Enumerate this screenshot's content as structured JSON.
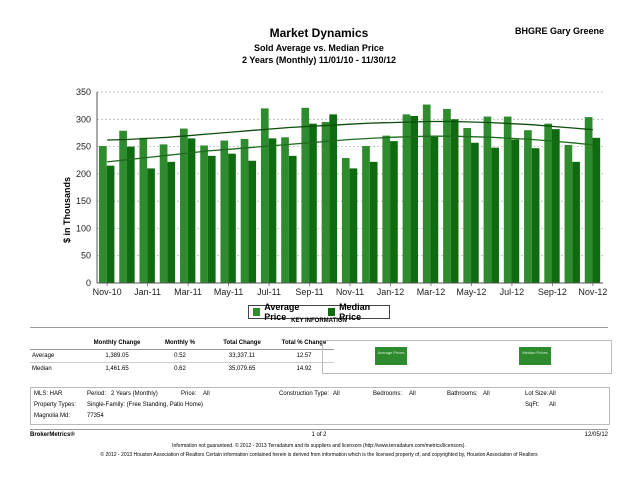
{
  "header": {
    "title": "Market Dynamics",
    "subtitle": "Sold Average vs. Median Price",
    "range": "2 Years (Monthly) 11/01/10 - 11/30/12",
    "agent": "BHGRE Gary Greene"
  },
  "colors": {
    "average": "#2e8b2e",
    "median": "#0f6b0f",
    "trend_avg": "#0b4d0b",
    "trend_med": "#1f6b1f",
    "grid": "#aaaaaa"
  },
  "chart_data": {
    "type": "bar",
    "title": "Sold Average vs. Median Price",
    "ylabel": "$ in Thousands",
    "xlabel": "",
    "ylim": [
      0,
      350
    ],
    "yticks": [
      0,
      50,
      100,
      150,
      200,
      250,
      300,
      350
    ],
    "grid": true,
    "legend_position": "bottom-center",
    "categories": [
      "Nov-10",
      "Dec-10",
      "Jan-11",
      "Feb-11",
      "Mar-11",
      "Apr-11",
      "May-11",
      "Jun-11",
      "Jul-11",
      "Aug-11",
      "Sep-11",
      "Oct-11",
      "Nov-11",
      "Dec-11",
      "Jan-12",
      "Feb-12",
      "Mar-12",
      "Apr-12",
      "May-12",
      "Jun-12",
      "Jul-12",
      "Aug-12",
      "Sep-12",
      "Oct-12",
      "Nov-12"
    ],
    "xtick_labels": [
      "Nov-10",
      "Jan-11",
      "Mar-11",
      "May-11",
      "Jul-11",
      "Sep-11",
      "Nov-11",
      "Jan-12",
      "Mar-12",
      "May-12",
      "Jul-12",
      "Sep-12",
      "Nov-12"
    ],
    "series": [
      {
        "name": "Average Price",
        "values": [
          251,
          279,
          266,
          254,
          283,
          252,
          261,
          264,
          320,
          267,
          321,
          295,
          229,
          251,
          270,
          309,
          327,
          319,
          284,
          305,
          305,
          280,
          292,
          253,
          304
        ]
      },
      {
        "name": "Median Price",
        "values": [
          215,
          250,
          210,
          222,
          265,
          233,
          237,
          224,
          265,
          233,
          292,
          309,
          210,
          222,
          260,
          306,
          268,
          300,
          257,
          248,
          263,
          247,
          282,
          222,
          266
        ]
      }
    ],
    "trendlines": [
      {
        "name": "Average Price trend",
        "values": [
          262,
          263,
          265,
          267,
          270,
          273,
          276,
          279,
          282,
          285,
          287,
          289,
          291,
          293,
          294,
          295,
          296,
          296,
          295,
          294,
          292,
          290,
          287,
          284,
          281
        ]
      },
      {
        "name": "Median Price trend",
        "values": [
          222,
          226,
          230,
          234,
          238,
          242,
          245,
          248,
          251,
          254,
          257,
          260,
          263,
          265,
          267,
          268,
          269,
          269,
          268,
          267,
          265,
          263,
          260,
          257,
          253
        ]
      }
    ]
  },
  "legend": {
    "avg": "Average Price",
    "med": "Median Price"
  },
  "key_info": {
    "heading": "KEY INFORMATION",
    "headers": [
      "",
      "Monthly Change",
      "Monthly %",
      "Total Change",
      "Total % Change"
    ],
    "rows": [
      [
        "Average",
        "1,389.05",
        "0.52",
        "33,337.11",
        "12.57"
      ],
      [
        "Median",
        "1,461.65",
        "0.62",
        "35,079.65",
        "14.92"
      ]
    ],
    "box_avg": "Average Prices",
    "box_med": "Median Prices"
  },
  "criteria": {
    "mls": "MLS: HAR",
    "period_label": "Period:",
    "period": "2 Years (Monthly)",
    "price_label": "Price:",
    "price": "All",
    "construction_label": "Construction Type:",
    "construction": "All",
    "bedrooms_label": "Bedrooms:",
    "bedrooms": "All",
    "bathrooms_label": "Bathrooms:",
    "bathrooms": "All",
    "lotsize_label": "Lot Size:",
    "lotsize": "All",
    "ptype_label": "Property Types:",
    "ptype": "Single-Family: (Free Standing, Patio Home)",
    "sqft_label": "SqFt:",
    "sqft": "All",
    "area_label": "Magnolia Md:",
    "area": "77354"
  },
  "footer": {
    "brand": "BrokerMetrics®",
    "page": "1 of 2",
    "date": "12/05/12",
    "disclaimer1": "Information not guaranteed. © 2012 - 2013 Terradatum and its suppliers and licensors (http://www.terradatum.com/metrics/licensors).",
    "disclaimer2": "© 2012 - 2013 Houston Association of Realtors Certain information contained herein is derived from information which is the licensed property of, and copyrighted by, Houston Association of Realtors"
  }
}
